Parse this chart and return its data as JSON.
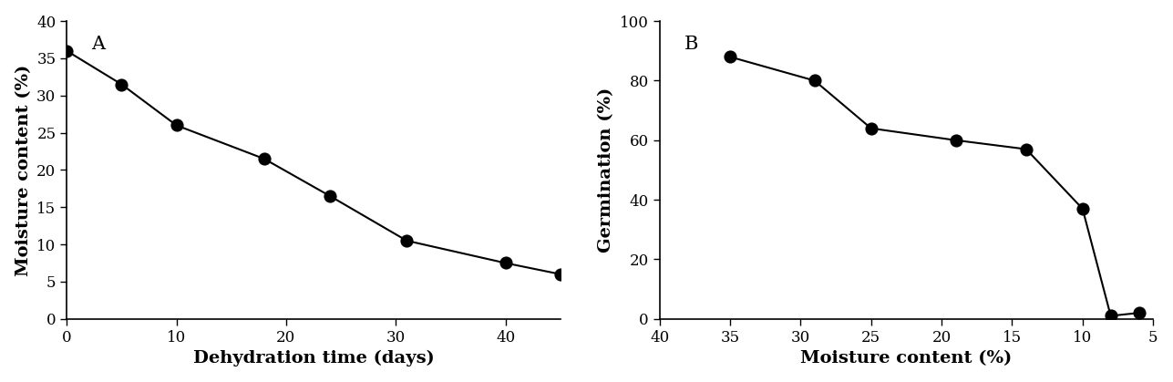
{
  "panel_A": {
    "x": [
      0,
      5,
      10,
      18,
      24,
      31,
      40,
      45
    ],
    "y": [
      36,
      31.5,
      26,
      21.5,
      16.5,
      10.5,
      7.5,
      6
    ],
    "xlabel": "Dehydration time (days)",
    "ylabel": "Moisture content (%)",
    "xlim": [
      0,
      45
    ],
    "ylim": [
      0,
      40
    ],
    "xticks": [
      0,
      10,
      20,
      30,
      40
    ],
    "yticks": [
      0,
      5,
      10,
      15,
      20,
      25,
      30,
      35,
      40
    ],
    "label": "A"
  },
  "panel_B": {
    "x": [
      35,
      29,
      25,
      19,
      14,
      10,
      8,
      6
    ],
    "y": [
      88,
      80,
      64,
      60,
      57,
      37,
      1,
      2
    ],
    "xlabel": "Moisture content (%)",
    "ylabel": "Germination (%)",
    "ylim": [
      0,
      100
    ],
    "xlim_reversed": [
      40,
      5
    ],
    "xticks": [
      40,
      35,
      30,
      25,
      20,
      15,
      10,
      5
    ],
    "yticks": [
      0,
      20,
      40,
      60,
      80,
      100
    ],
    "label": "B"
  },
  "line_color": "#000000",
  "marker": "o",
  "marker_size": 9,
  "marker_facecolor": "#000000",
  "linewidth": 1.5,
  "tick_fontsize": 12,
  "label_fontsize": 14,
  "panel_label_fontsize": 15,
  "background_color": "#ffffff"
}
